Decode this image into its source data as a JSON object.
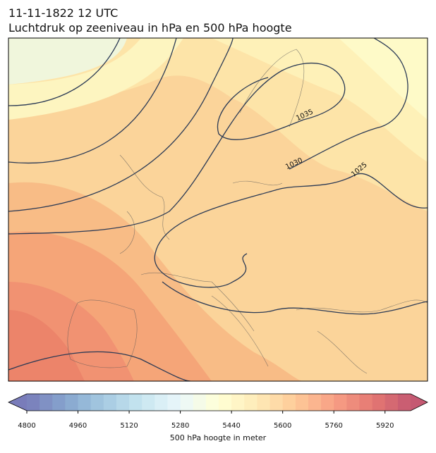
{
  "header": {
    "date": "11-11-1822 12 UTC",
    "title": "Luchtdruk op zeeniveau in hPa en 500 hPa hoogte"
  },
  "map": {
    "contour_labels": [
      "1035",
      "1030",
      "1025"
    ]
  },
  "colorbar": {
    "label": "500 hPa hoogte in meter",
    "lim": [
      4800,
      6000
    ],
    "ticks": [
      4800,
      4960,
      5120,
      5280,
      5440,
      5600,
      5760,
      5920
    ],
    "level_step": 40,
    "colormap": [
      "#313695",
      "#4575b4",
      "#74add1",
      "#abd9e9",
      "#e0f3f8",
      "#ffffbf",
      "#fee090",
      "#fdae61",
      "#f46d43",
      "#d73027",
      "#a50026"
    ],
    "alpha": 0.65
  }
}
